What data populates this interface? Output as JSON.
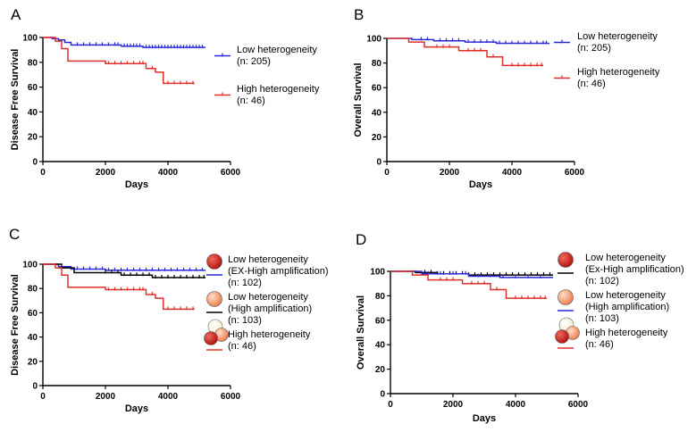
{
  "chart_data": [
    {
      "panel": "A",
      "type": "line",
      "title": "",
      "xlabel": "Days",
      "ylabel": "Disease Free Survival",
      "xlim": [
        0,
        6000
      ],
      "ylim": [
        0,
        100
      ],
      "xticks": [
        0,
        2000,
        4000,
        6000
      ],
      "yticks": [
        0,
        20,
        40,
        60,
        80,
        100
      ],
      "series": [
        {
          "name": "Low heterogeneity",
          "legend": [
            "Low heterogeneity",
            "(n: 205)"
          ],
          "color": "#2b2bd8",
          "steps": [
            [
              0,
              100
            ],
            [
              300,
              99
            ],
            [
              500,
              98
            ],
            [
              700,
              96
            ],
            [
              900,
              94
            ],
            [
              2500,
              93
            ],
            [
              3200,
              92
            ],
            [
              5200,
              92
            ]
          ],
          "censors": [
            1100,
            1300,
            1500,
            1700,
            1900,
            2100,
            2300,
            2400,
            2600,
            2700,
            2800,
            2900,
            3000,
            3100,
            3300,
            3400,
            3500,
            3600,
            3700,
            3800,
            3900,
            4000,
            4100,
            4200,
            4300,
            4400,
            4500,
            4600,
            4700,
            4800,
            4900,
            5000,
            5100
          ]
        },
        {
          "name": "High heterogeneity",
          "legend": [
            "High heterogeneity",
            "(n: 46)"
          ],
          "color": "#e0302a",
          "steps": [
            [
              0,
              100
            ],
            [
              400,
              97
            ],
            [
              600,
              91
            ],
            [
              800,
              81
            ],
            [
              2000,
              79
            ],
            [
              3300,
              75
            ],
            [
              3600,
              72
            ],
            [
              3850,
              63
            ],
            [
              4850,
              63
            ]
          ],
          "censors": [
            2100,
            2300,
            2500,
            2700,
            2900,
            3100,
            3200,
            3500,
            4000,
            4200,
            4400,
            4600,
            4800
          ]
        }
      ]
    },
    {
      "panel": "B",
      "type": "line",
      "title": "",
      "xlabel": "Days",
      "ylabel": "Overall Survival",
      "xlim": [
        0,
        6000
      ],
      "ylim": [
        0,
        100
      ],
      "xticks": [
        0,
        2000,
        4000,
        6000
      ],
      "yticks": [
        0,
        20,
        40,
        60,
        80,
        100
      ],
      "series": [
        {
          "name": "Low heterogeneity",
          "legend": [
            "Low heterogeneity",
            "(n: 205)"
          ],
          "color": "#2b2bd8",
          "steps": [
            [
              0,
              100
            ],
            [
              800,
              99
            ],
            [
              1500,
              98
            ],
            [
              2500,
              97
            ],
            [
              3500,
              96
            ],
            [
              5200,
              96
            ]
          ],
          "censors": [
            1100,
            1300,
            1700,
            1900,
            2100,
            2300,
            2600,
            2800,
            3000,
            3200,
            3400,
            3600,
            3800,
            4000,
            4200,
            4400,
            4600,
            4800,
            5000,
            5100
          ]
        },
        {
          "name": "High heterogeneity",
          "legend": [
            "High heterogeneity",
            "(n: 46)"
          ],
          "color": "#e0302a",
          "steps": [
            [
              0,
              100
            ],
            [
              700,
              97
            ],
            [
              1200,
              93
            ],
            [
              2300,
              90
            ],
            [
              3200,
              85
            ],
            [
              3700,
              78
            ],
            [
              5000,
              78
            ]
          ],
          "censors": [
            1600,
            1800,
            2000,
            2600,
            2800,
            3000,
            3400,
            4000,
            4200,
            4400,
            4600,
            4800,
            4950
          ]
        }
      ]
    },
    {
      "panel": "C",
      "type": "line",
      "title": "",
      "xlabel": "Days",
      "ylabel": "Disease Free Survival",
      "xlim": [
        0,
        6000
      ],
      "ylim": [
        0,
        100
      ],
      "xticks": [
        0,
        2000,
        4000,
        6000
      ],
      "yticks": [
        0,
        20,
        40,
        60,
        80,
        100
      ],
      "series": [
        {
          "name": "Low heterogeneity (EX-High amplification)",
          "legend": [
            "Low heterogeneity",
            "(EX-High amplification)",
            "(n: 102)"
          ],
          "color": "#2b2bd8",
          "steps": [
            [
              0,
              100
            ],
            [
              500,
              98
            ],
            [
              900,
              96
            ],
            [
              2000,
              95
            ],
            [
              5200,
              95
            ]
          ],
          "censors": [
            1100,
            1300,
            1500,
            1700,
            1900,
            2100,
            2300,
            2500,
            2700,
            2900,
            3100,
            3300,
            3500,
            3700,
            3900,
            4100,
            4300,
            4500,
            4700,
            4900,
            5100
          ]
        },
        {
          "name": "Low heterogeneity (High amplification)",
          "legend": [
            "Low heterogeneity",
            "(High amplification)",
            "(n: 103)"
          ],
          "color": "#000000",
          "steps": [
            [
              0,
              100
            ],
            [
              600,
              97
            ],
            [
              1000,
              93
            ],
            [
              2500,
              91
            ],
            [
              3500,
              89
            ],
            [
              5200,
              89
            ]
          ],
          "censors": [
            2000,
            2200,
            2400,
            2600,
            2800,
            3000,
            3200,
            3400,
            3600,
            3800,
            4000,
            4200,
            4400,
            4600,
            4800,
            5000,
            5150
          ]
        },
        {
          "name": "High heterogeneity",
          "legend": [
            "High heterogeneity",
            "(n:  46)"
          ],
          "color": "#e0302a",
          "steps": [
            [
              0,
              100
            ],
            [
              400,
              97
            ],
            [
              600,
              91
            ],
            [
              800,
              81
            ],
            [
              2000,
              79
            ],
            [
              3300,
              75
            ],
            [
              3600,
              72
            ],
            [
              3850,
              63
            ],
            [
              4850,
              63
            ]
          ],
          "censors": [
            2100,
            2300,
            2500,
            2700,
            2900,
            3100,
            3200,
            3500,
            4000,
            4200,
            4400,
            4600,
            4800
          ]
        }
      ]
    },
    {
      "panel": "D",
      "type": "line",
      "title": "",
      "xlabel": "Days",
      "ylabel": "Overall Survival",
      "xlim": [
        0,
        6000
      ],
      "ylim": [
        0,
        100
      ],
      "xticks": [
        0,
        2000,
        4000,
        6000
      ],
      "yticks": [
        0,
        20,
        40,
        60,
        80,
        100
      ],
      "series": [
        {
          "name": "Low heterogeneity (Ex-High amplification)",
          "legend": [
            "Low heterogeneity",
            "(Ex-High amplification)",
            "(n: 102)"
          ],
          "color": "#000000",
          "steps": [
            [
              0,
              100
            ],
            [
              800,
              99
            ],
            [
              1500,
              98
            ],
            [
              2500,
              97
            ],
            [
              5200,
              97
            ]
          ],
          "censors": [
            1100,
            1300,
            1500,
            1700,
            1900,
            2100,
            2300,
            2500,
            2700,
            2900,
            3100,
            3300,
            3500,
            3700,
            3900,
            4100,
            4300,
            4500,
            4700,
            4900,
            5100
          ]
        },
        {
          "name": "Low heterogeneity (High amplification)",
          "legend": [
            "Low heterogeneity",
            "(High amplification)",
            "(n: 103)"
          ],
          "color": "#2b2bd8",
          "steps": [
            [
              0,
              100
            ],
            [
              1000,
              98
            ],
            [
              2500,
              96
            ],
            [
              3500,
              95
            ],
            [
              5200,
              95
            ]
          ],
          "censors": [
            1200,
            1600,
            2000,
            2400,
            2800,
            3200,
            3600,
            4000,
            4400,
            4800
          ]
        },
        {
          "name": "High heterogeneity",
          "legend": [
            "High heterogeneity",
            "(n:  46)"
          ],
          "color": "#e0302a",
          "steps": [
            [
              0,
              100
            ],
            [
              700,
              97
            ],
            [
              1200,
              93
            ],
            [
              2300,
              90
            ],
            [
              3200,
              85
            ],
            [
              3700,
              78
            ],
            [
              5000,
              78
            ]
          ],
          "censors": [
            1600,
            1800,
            2000,
            2600,
            2800,
            3000,
            3400,
            4000,
            4200,
            4400,
            4600,
            4800,
            4950
          ]
        }
      ]
    }
  ]
}
